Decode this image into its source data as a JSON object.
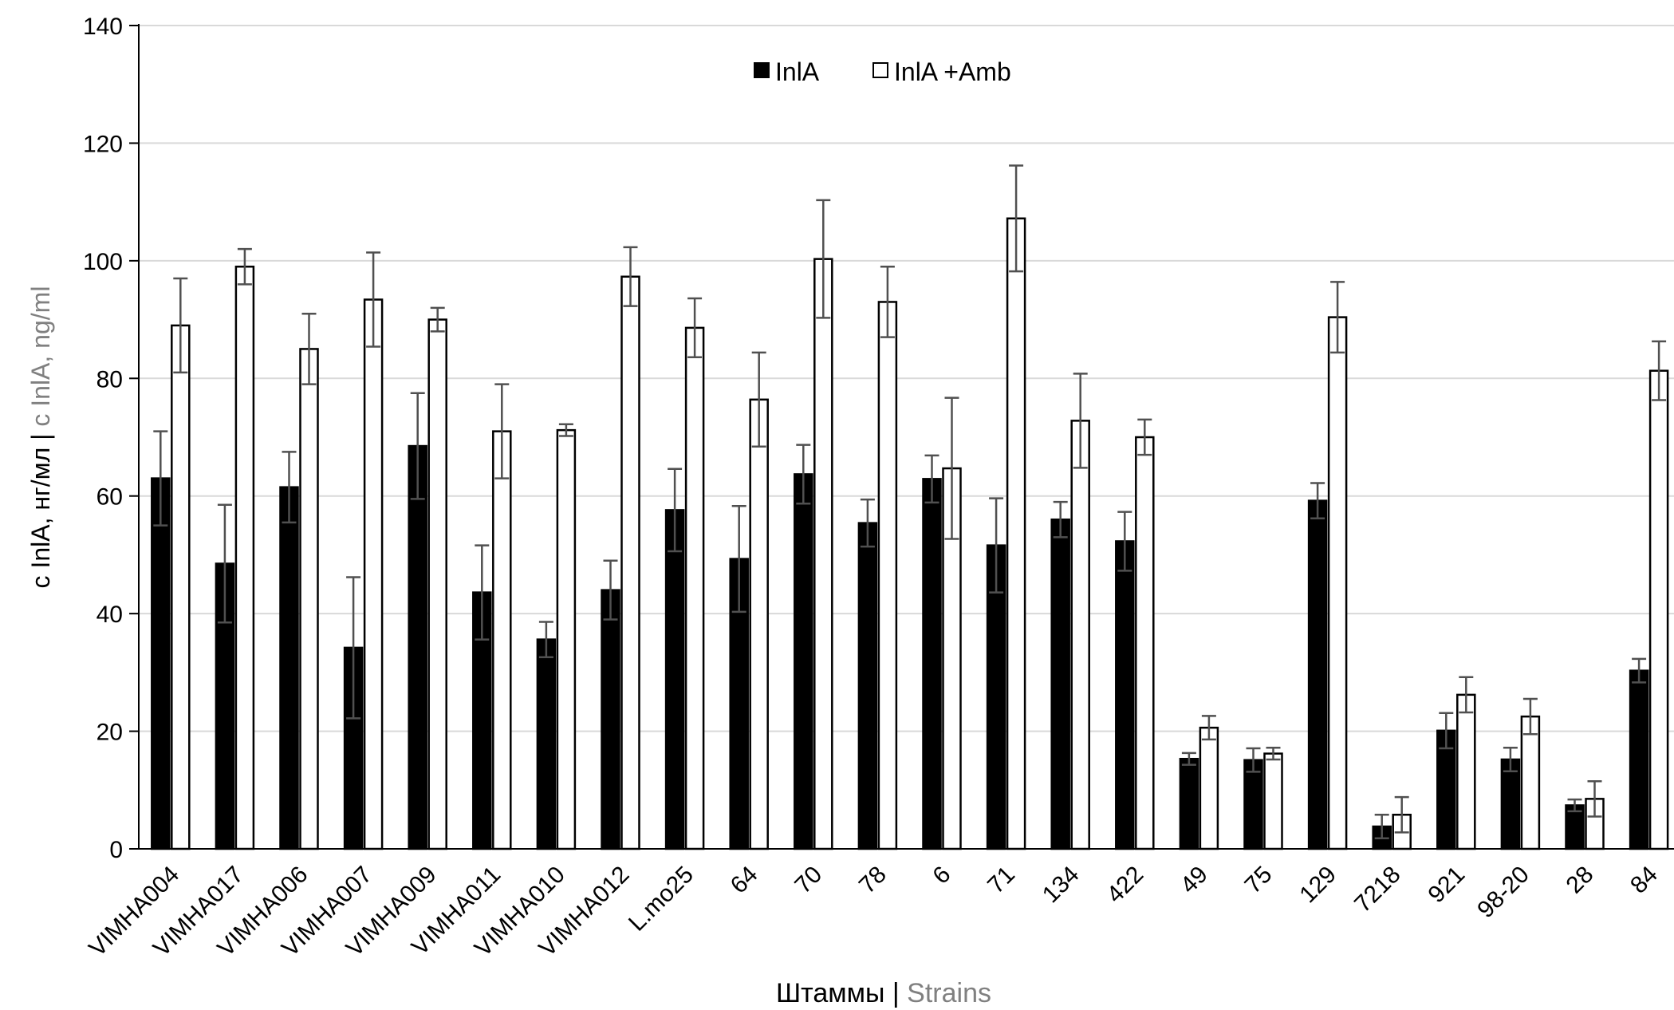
{
  "chart_data": {
    "type": "bar",
    "title": "",
    "ylabel_main": "c InlA, нг/мл",
    "ylabel_sep": " | ",
    "ylabel_alt": "c InlA, ng/ml",
    "xlabel_main": "Штаммы",
    "xlabel_sep": " | ",
    "xlabel_alt": "Strains",
    "ylim": [
      0,
      140
    ],
    "yticks": [
      0,
      20,
      40,
      60,
      80,
      100,
      120,
      140
    ],
    "grid": true,
    "legend_position": "top-center",
    "categories": [
      "VIMHA004",
      "VIMHA017",
      "VIMHA006",
      "VIMHA007",
      "VIMHA009",
      "VIMHA011",
      "VIMHA010",
      "VIMHA012",
      "L.mo25",
      "64",
      "70",
      "78",
      "6",
      "71",
      "134",
      "422",
      "49",
      "75",
      "129",
      "7218",
      "921",
      "98-20",
      "28",
      "84"
    ],
    "series": [
      {
        "name": "InlA",
        "color": "#000000",
        "values": [
          63,
          48.5,
          61.5,
          34.2,
          68.5,
          43.6,
          35.6,
          44,
          57.6,
          49.3,
          63.7,
          55.4,
          62.9,
          51.6,
          56,
          52.3,
          15.3,
          15.1,
          59.2,
          3.8,
          20.1,
          15.2,
          7.4,
          30.3
        ],
        "errors": [
          8,
          10,
          6,
          12,
          9,
          8,
          3,
          5,
          7,
          9,
          5,
          4,
          4,
          8,
          3,
          5,
          1,
          2,
          3,
          2,
          3,
          2,
          1,
          2
        ]
      },
      {
        "name": "InlA +Amb",
        "color": "#ffffff",
        "values": [
          89,
          99,
          85,
          93.4,
          90,
          71,
          71.2,
          97.3,
          88.6,
          76.4,
          100.3,
          93,
          64.7,
          107.2,
          72.8,
          70,
          20.6,
          16.2,
          90.4,
          5.8,
          26.2,
          22.5,
          8.5,
          81.3
        ],
        "errors": [
          8,
          3,
          6,
          8,
          2,
          8,
          1,
          5,
          5,
          8,
          10,
          6,
          12,
          9,
          8,
          3,
          2,
          1,
          6,
          3,
          3,
          3,
          3,
          5
        ]
      }
    ],
    "colors": {
      "grid": "#d9d9d9",
      "axis": "#000000",
      "error_bar": "#505050",
      "alt_label": "#808080"
    }
  }
}
